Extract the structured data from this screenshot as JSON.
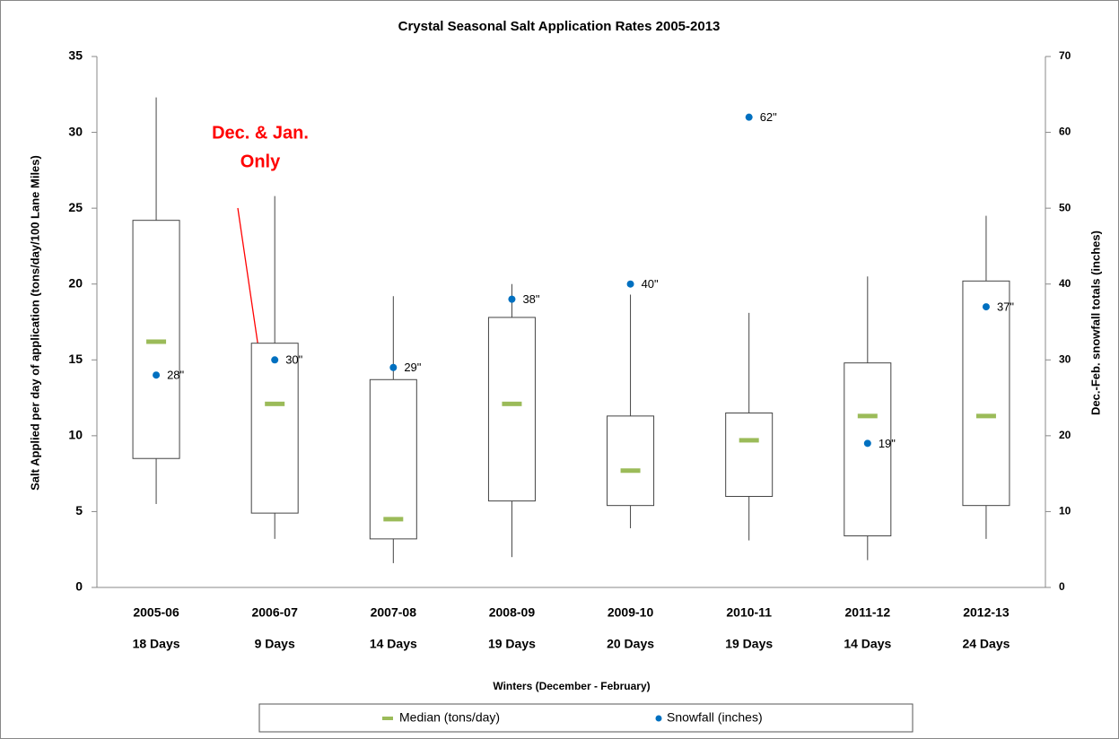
{
  "chart_data": {
    "type": "box",
    "title": "Crystal Seasonal Salt Application Rates 2005-2013",
    "y_label": "Salt  Applied per day of application (tons/day/100 Lane Miles)",
    "y2_label": "Dec.-Feb. snowfall totals (inches)",
    "x_label": "Winters (December - February)",
    "categories": [
      "2005-06",
      "2006-07",
      "2007-08",
      "2008-09",
      "2009-10",
      "2010-11",
      "2011-12",
      "2012-13"
    ],
    "days": [
      "18 Days",
      "9 Days",
      "14 Days",
      "19 Days",
      "20 Days",
      "19 Days",
      "14 Days",
      "24 Days"
    ],
    "boxes": {
      "low": [
        5.5,
        3.2,
        1.6,
        2.0,
        3.9,
        3.1,
        1.8,
        3.2
      ],
      "q1": [
        8.5,
        4.9,
        3.2,
        5.7,
        5.4,
        6.0,
        3.4,
        5.4
      ],
      "q3": [
        24.2,
        16.1,
        13.7,
        17.8,
        11.3,
        11.5,
        14.8,
        20.2
      ],
      "high": [
        32.3,
        25.8,
        19.2,
        20.0,
        19.3,
        18.1,
        20.5,
        24.5
      ]
    },
    "series": [
      {
        "name": "Median (tons/day)",
        "color": "#9bbb59",
        "values": [
          16.2,
          12.1,
          4.5,
          12.1,
          7.7,
          9.7,
          11.3,
          11.3
        ]
      },
      {
        "name": "Snowfall (inches)",
        "color": "#0070c0",
        "axis": "y2",
        "values": [
          28,
          30,
          29,
          38,
          40,
          62,
          19,
          37
        ],
        "value_labels": [
          "28\"",
          "30\"",
          "29\"",
          "38\"",
          "40\"",
          "62\"",
          "19\"",
          "37\""
        ]
      }
    ],
    "annotation": {
      "lines": [
        "Dec. & Jan.",
        "Only"
      ],
      "color": "#ff0000"
    },
    "ylim": [
      0,
      35
    ],
    "yticks": [
      0,
      5,
      10,
      15,
      20,
      25,
      30,
      35
    ],
    "y2lim": [
      0,
      70
    ],
    "y2ticks": [
      0,
      10,
      20,
      30,
      40,
      50,
      60,
      70
    ]
  }
}
